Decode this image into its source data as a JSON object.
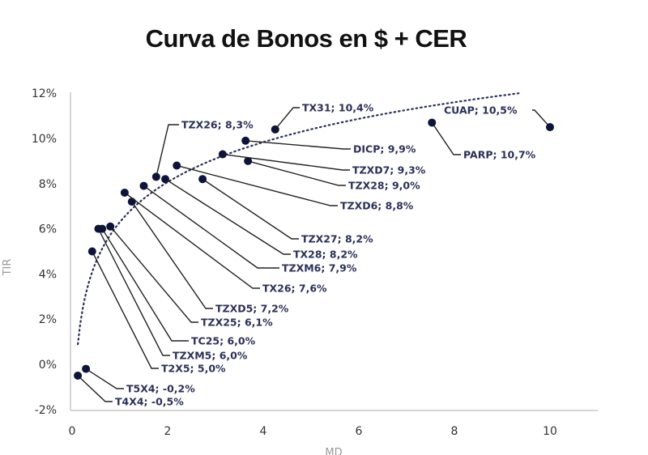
{
  "chart_data": {
    "type": "scatter",
    "title": "Curva de Bonos en $ + CER",
    "xlabel": "MD",
    "ylabel": "TIR",
    "xlim": [
      0,
      11
    ],
    "ylim": [
      -2,
      12
    ],
    "xticks": [
      "0",
      "2",
      "4",
      "6",
      "8",
      "10"
    ],
    "yticks": [
      "-2%",
      "0%",
      "2%",
      "4%",
      "6%",
      "8%",
      "10%",
      "12%"
    ],
    "grid": false,
    "trendline": "logarithmic (dotted)",
    "colors": {
      "points": "#0d1437",
      "labels": "#2a3157",
      "trend": "#2a3157"
    },
    "points": [
      {
        "name": "T4X4",
        "x": 0.12,
        "y": -0.5,
        "label": "T4X4; -0,5%"
      },
      {
        "name": "T5X4",
        "x": 0.29,
        "y": -0.2,
        "label": "T5X4; -0,2%"
      },
      {
        "name": "T2X5",
        "x": 0.42,
        "y": 5.0,
        "label": "T2X5; 5,0%"
      },
      {
        "name": "TZXM5",
        "x": 0.55,
        "y": 6.0,
        "label": "TZXM5; 6,0%"
      },
      {
        "name": "TC25",
        "x": 0.63,
        "y": 6.0,
        "label": "TC25; 6,0%"
      },
      {
        "name": "TZX25",
        "x": 0.8,
        "y": 6.1,
        "label": "TZX25; 6,1%"
      },
      {
        "name": "TZXD5",
        "x": 1.25,
        "y": 7.2,
        "label": "TZXD5; 7,2%"
      },
      {
        "name": "TX26",
        "x": 1.1,
        "y": 7.6,
        "label": "TX26; 7,6%"
      },
      {
        "name": "TZXM6",
        "x": 1.5,
        "y": 7.9,
        "label": "TZXM6; 7,9%"
      },
      {
        "name": "TX28",
        "x": 1.95,
        "y": 8.2,
        "label": "TX28; 8,2%"
      },
      {
        "name": "TZX27",
        "x": 2.73,
        "y": 8.2,
        "label": "TZX27; 8,2%"
      },
      {
        "name": "TZX26",
        "x": 1.76,
        "y": 8.3,
        "label": "TZX26; 8,3%"
      },
      {
        "name": "TZXD6",
        "x": 2.19,
        "y": 8.8,
        "label": "TZXD6; 8,8%"
      },
      {
        "name": "TZX28",
        "x": 3.68,
        "y": 9.0,
        "label": "TZX28; 9,0%"
      },
      {
        "name": "TZXD7",
        "x": 3.15,
        "y": 9.3,
        "label": "TZXD7; 9,3%"
      },
      {
        "name": "DICP",
        "x": 3.63,
        "y": 9.9,
        "label": "DICP; 9,9%"
      },
      {
        "name": "TX31",
        "x": 4.25,
        "y": 10.4,
        "label": "TX31; 10,4%"
      },
      {
        "name": "CUAP",
        "x": 10.0,
        "y": 10.5,
        "label": "CUAP; 10,5%"
      },
      {
        "name": "PARP",
        "x": 7.53,
        "y": 10.7,
        "label": "PARP; 10,7%"
      }
    ]
  }
}
